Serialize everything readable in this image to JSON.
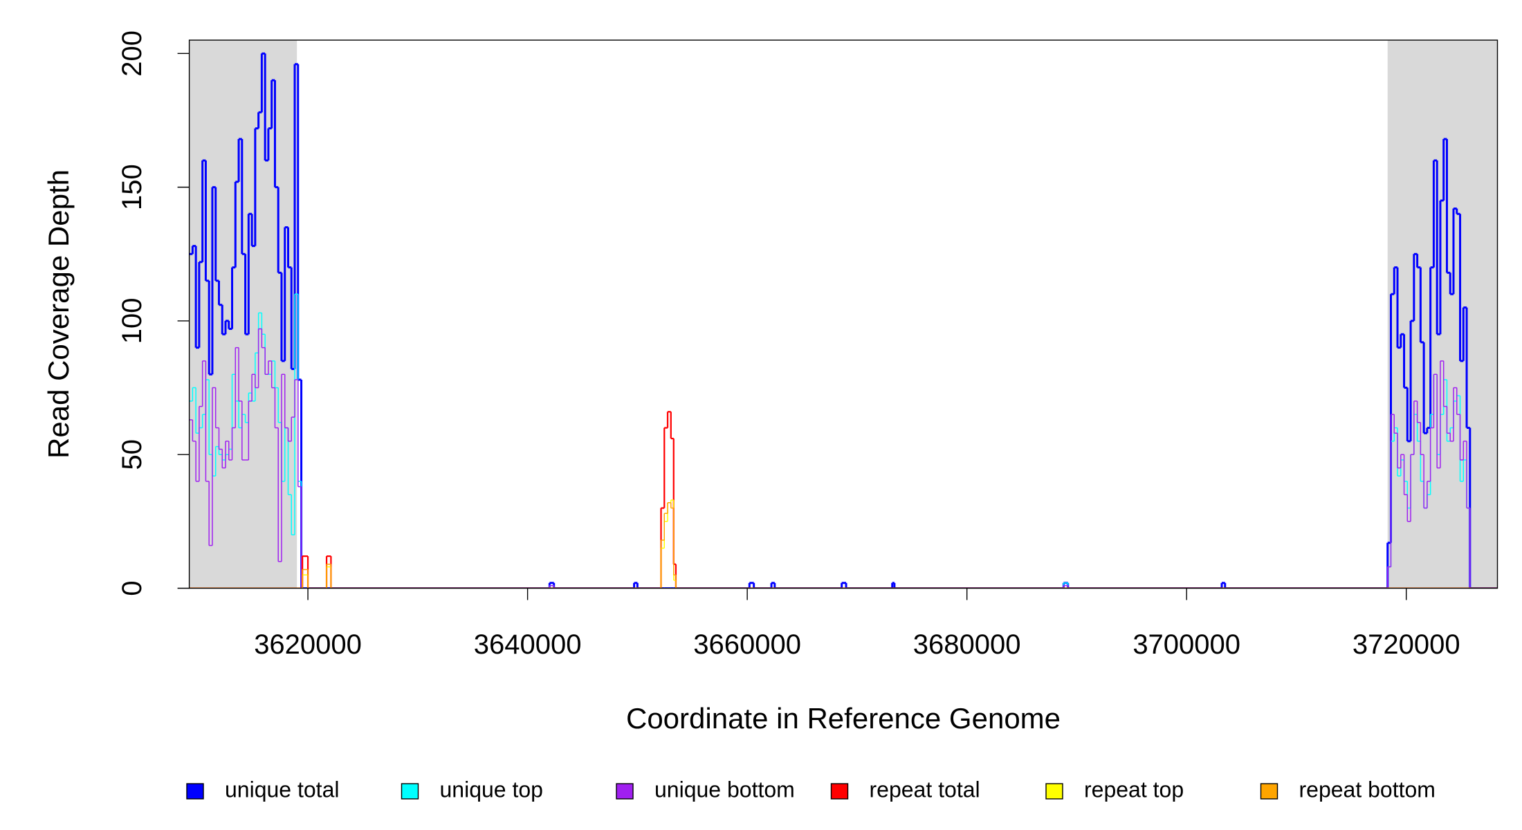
{
  "chart_data": {
    "type": "line",
    "step": true,
    "x_label": "Coordinate in Reference Genome",
    "y_label": "Read Coverage Depth",
    "xlim": [
      3609200,
      3728300
    ],
    "ylim": [
      0,
      205
    ],
    "xticks": [
      3620000,
      3640000,
      3660000,
      3680000,
      3700000,
      3720000
    ],
    "yticks": [
      0,
      50,
      100,
      150,
      200
    ],
    "highlight_color": "#d9d9d9",
    "highlight_regions": [
      [
        3609200,
        3619000
      ],
      [
        3718300,
        3728300
      ]
    ],
    "legend": "bottom",
    "x": [
      3609200,
      3609500,
      3609800,
      3610100,
      3610400,
      3610700,
      3611000,
      3611300,
      3611600,
      3611900,
      3612200,
      3612500,
      3612800,
      3613100,
      3613400,
      3613700,
      3614000,
      3614300,
      3614600,
      3614900,
      3615200,
      3615500,
      3615800,
      3616100,
      3616400,
      3616700,
      3617000,
      3617300,
      3617600,
      3617900,
      3618200,
      3618500,
      3618800,
      3619100,
      3619400,
      3619500,
      3620000,
      3621700,
      3622100,
      3642000,
      3642400,
      3649700,
      3650000,
      3652150,
      3652450,
      3652750,
      3653050,
      3653300,
      3653500,
      3660200,
      3660600,
      3662200,
      3662500,
      3668600,
      3669000,
      3673200,
      3673400,
      3688800,
      3689200,
      3703200,
      3703500,
      3718300,
      3718600,
      3718900,
      3719200,
      3719500,
      3719800,
      3720100,
      3720400,
      3720700,
      3721000,
      3721300,
      3721600,
      3721900,
      3722200,
      3722500,
      3722800,
      3723100,
      3723400,
      3723700,
      3724000,
      3724300,
      3724600,
      3724900,
      3725200,
      3725500,
      3725800,
      3728300
    ],
    "series": [
      {
        "name": "unique total",
        "color": "#0000ff",
        "width": 2,
        "values": [
          125,
          128,
          90,
          122,
          160,
          115,
          80,
          150,
          115,
          106,
          95,
          100,
          97,
          120,
          152,
          168,
          125,
          95,
          140,
          128,
          172,
          178,
          200,
          160,
          172,
          190,
          150,
          118,
          85,
          135,
          120,
          82,
          196,
          78,
          0,
          0,
          0,
          0,
          0,
          2,
          0,
          2,
          0,
          0,
          0,
          0,
          0,
          0,
          0,
          2,
          0,
          2,
          0,
          2,
          0,
          2,
          0,
          2,
          0,
          2,
          0,
          17,
          110,
          120,
          90,
          95,
          75,
          55,
          100,
          125,
          120,
          92,
          58,
          60,
          120,
          160,
          95,
          145,
          168,
          118,
          110,
          142,
          140,
          85,
          105,
          60,
          0,
          0
        ]
      },
      {
        "name": "unique top",
        "color": "#00ffff",
        "width": 1,
        "values": [
          70,
          75,
          58,
          60,
          65,
          78,
          50,
          42,
          53,
          50,
          48,
          50,
          52,
          80,
          70,
          60,
          65,
          62,
          73,
          70,
          88,
          103,
          95,
          80,
          80,
          85,
          75,
          62,
          40,
          60,
          35,
          20,
          110,
          40,
          0,
          0,
          0,
          0,
          0,
          1,
          0,
          0,
          0,
          0,
          0,
          0,
          0,
          0,
          0,
          0,
          0,
          0,
          0,
          0,
          0,
          0,
          0,
          2,
          0,
          0,
          0,
          8,
          55,
          60,
          42,
          48,
          40,
          30,
          50,
          65,
          55,
          40,
          30,
          35,
          65,
          80,
          50,
          65,
          78,
          55,
          60,
          70,
          72,
          40,
          48,
          30,
          0,
          0
        ]
      },
      {
        "name": "unique bottom",
        "color": "#a020f0",
        "width": 1,
        "values": [
          63,
          55,
          40,
          68,
          85,
          40,
          16,
          75,
          60,
          52,
          45,
          55,
          48,
          60,
          90,
          70,
          48,
          48,
          70,
          80,
          75,
          97,
          90,
          80,
          85,
          75,
          60,
          10,
          80,
          60,
          55,
          64,
          78,
          38,
          0,
          0,
          0,
          0,
          0,
          1,
          0,
          0,
          0,
          0,
          0,
          0,
          0,
          0,
          0,
          0,
          0,
          0,
          0,
          0,
          0,
          0,
          0,
          1,
          0,
          0,
          0,
          8,
          65,
          58,
          45,
          50,
          35,
          25,
          50,
          70,
          62,
          50,
          30,
          40,
          60,
          80,
          45,
          85,
          68,
          58,
          55,
          75,
          65,
          48,
          55,
          30,
          0,
          0
        ]
      },
      {
        "name": "repeat total",
        "color": "#ff0000",
        "width": 1.5,
        "values": [
          0,
          0,
          0,
          0,
          0,
          0,
          0,
          0,
          0,
          0,
          0,
          0,
          0,
          0,
          0,
          0,
          0,
          0,
          0,
          0,
          0,
          0,
          0,
          0,
          0,
          0,
          0,
          0,
          0,
          0,
          0,
          0,
          0,
          0,
          0,
          12,
          0,
          12,
          0,
          0,
          0,
          0,
          0,
          30,
          60,
          66,
          56,
          9,
          0,
          0,
          0,
          0,
          0,
          0,
          0,
          0,
          0,
          0,
          0,
          0,
          0,
          0,
          0,
          0,
          0,
          0,
          0,
          0,
          0,
          0,
          0,
          0,
          0,
          0,
          0,
          0,
          0,
          0,
          0,
          0,
          0,
          0,
          0,
          0,
          0,
          0,
          0,
          0
        ]
      },
      {
        "name": "repeat top",
        "color": "#ffff00",
        "width": 1,
        "values": [
          0,
          0,
          0,
          0,
          0,
          0,
          0,
          0,
          0,
          0,
          0,
          0,
          0,
          0,
          0,
          0,
          0,
          0,
          0,
          0,
          0,
          0,
          0,
          0,
          0,
          0,
          0,
          0,
          0,
          0,
          0,
          0,
          0,
          0,
          0,
          5,
          0,
          8,
          0,
          0,
          0,
          0,
          0,
          15,
          25,
          32,
          33,
          3,
          0,
          0,
          0,
          0,
          0,
          0,
          0,
          0,
          0,
          0,
          0,
          0,
          0,
          0,
          0,
          0,
          0,
          0,
          0,
          0,
          0,
          0,
          0,
          0,
          0,
          0,
          0,
          0,
          0,
          0,
          0,
          0,
          0,
          0,
          0,
          0,
          0,
          0,
          0,
          0
        ]
      },
      {
        "name": "repeat bottom",
        "color": "#ffa500",
        "width": 1,
        "values": [
          0,
          0,
          0,
          0,
          0,
          0,
          0,
          0,
          0,
          0,
          0,
          0,
          0,
          0,
          0,
          0,
          0,
          0,
          0,
          0,
          0,
          0,
          0,
          0,
          0,
          0,
          0,
          0,
          0,
          0,
          0,
          0,
          0,
          0,
          0,
          7,
          0,
          9,
          0,
          0,
          0,
          0,
          0,
          18,
          28,
          32,
          30,
          5,
          0,
          0,
          0,
          0,
          0,
          0,
          0,
          0,
          0,
          0,
          0,
          0,
          0,
          0,
          0,
          0,
          0,
          0,
          0,
          0,
          0,
          0,
          0,
          0,
          0,
          0,
          0,
          0,
          0,
          0,
          0,
          0,
          0,
          0,
          0,
          0,
          0,
          0,
          0,
          0
        ]
      }
    ]
  }
}
